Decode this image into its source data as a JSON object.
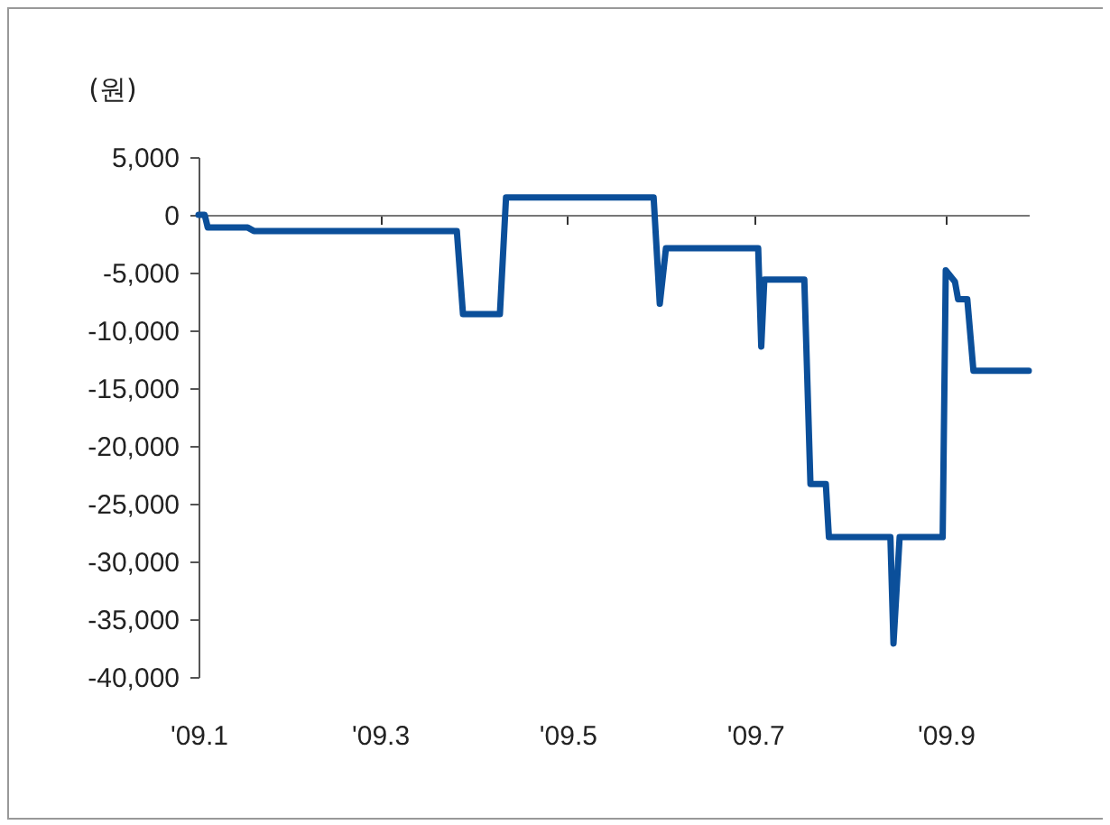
{
  "chart_data": {
    "type": "line",
    "ylabel": "(원)",
    "x": [
      "2009-01-01",
      "2009-01-03",
      "2009-01-04",
      "2009-01-17",
      "2009-01-19",
      "2009-03-26",
      "2009-03-28",
      "2009-04-09",
      "2009-04-11",
      "2009-05-29",
      "2009-05-31",
      "2009-06-02",
      "2009-07-02",
      "2009-07-03",
      "2009-07-04",
      "2009-07-17",
      "2009-07-19",
      "2009-07-24",
      "2009-07-25",
      "2009-08-14",
      "2009-08-15",
      "2009-08-17",
      "2009-08-31",
      "2009-09-01",
      "2009-09-04",
      "2009-09-05",
      "2009-09-08",
      "2009-09-10",
      "2009-09-28"
    ],
    "series": [
      {
        "color": "#0b4f9a",
        "values": [
          0,
          0,
          -1100,
          -1100,
          -1400,
          -1400,
          -8600,
          -8600,
          1500,
          1500,
          -7700,
          -2900,
          -2900,
          -11400,
          -5600,
          -5600,
          -23300,
          -23300,
          -27900,
          -27900,
          -37100,
          -27900,
          -27900,
          -4800,
          -5800,
          -7300,
          -7300,
          -13500,
          -13500
        ]
      }
    ],
    "xlim": [
      "2009-01-01",
      "2009-09-28"
    ],
    "xticks": [
      {
        "value": "2009-01-01",
        "label": "'09.1"
      },
      {
        "value": "2009-03-01",
        "label": "'09.3"
      },
      {
        "value": "2009-05-01",
        "label": "'09.5"
      },
      {
        "value": "2009-07-01",
        "label": "'09.7"
      },
      {
        "value": "2009-09-01",
        "label": "'09.9"
      }
    ],
    "ylim": [
      -40000,
      5000
    ],
    "yticks": [
      {
        "value": 5000,
        "label": "5,000"
      },
      0,
      {
        "value": -5000,
        "label": "-5,000"
      },
      {
        "value": -10000,
        "label": "-10,000"
      },
      {
        "value": -15000,
        "label": "-15,000"
      },
      {
        "value": -20000,
        "label": "-20,000"
      },
      {
        "value": -25000,
        "label": "-25,000"
      },
      {
        "value": -30000,
        "label": "-30,000"
      },
      {
        "value": -35000,
        "label": "-35,000"
      },
      {
        "value": -40000,
        "label": "-40,000"
      }
    ],
    "marker": "none",
    "line_style": "solid"
  }
}
